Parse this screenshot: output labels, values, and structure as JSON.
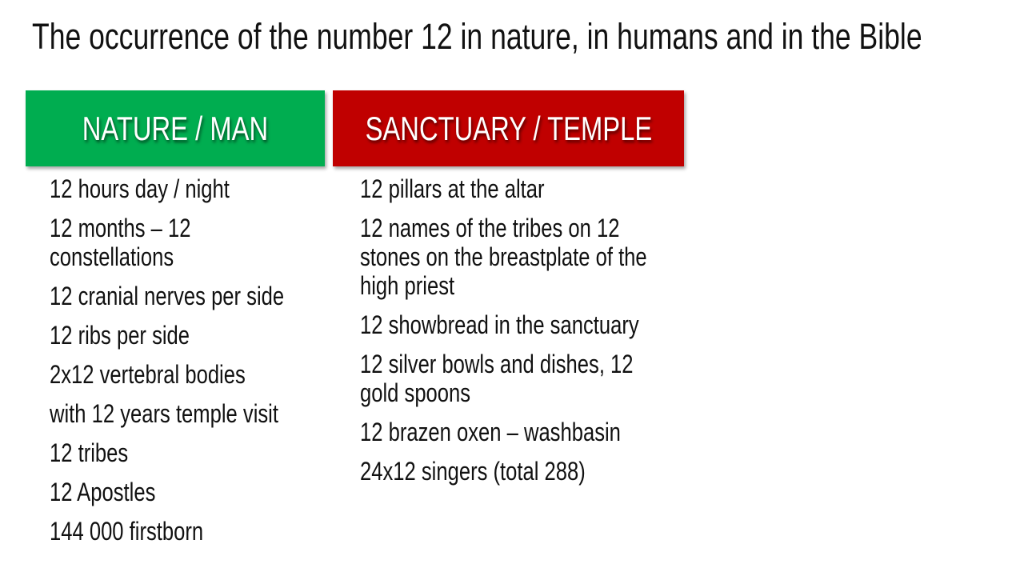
{
  "title": "The occurrence of the number 12 in nature, in humans and in the Bible",
  "columns": [
    {
      "header": "NATURE / MAN",
      "color": "#00ad50",
      "items": [
        "12 hours day / night",
        "12 months – 12 constellations",
        "12 cranial nerves per side",
        "12 ribs per side",
        "2x12 vertebral bodies",
        "with 12 years temple visit",
        "12 tribes",
        "12 Apostles",
        "144 000 firstborn"
      ]
    },
    {
      "header": "SANCTUARY / TEMPLE",
      "color": "#c00000",
      "items": [
        "12 pillars at the altar",
        "12 names of the tribes on 12 stones on the breastplate of the high priest",
        "12 showbread in the sanctuary",
        "12 silver bowls and dishes, 12 gold spoons",
        "12 brazen oxen – washbasin",
        "24x12 singers (total 288)"
      ]
    }
  ]
}
